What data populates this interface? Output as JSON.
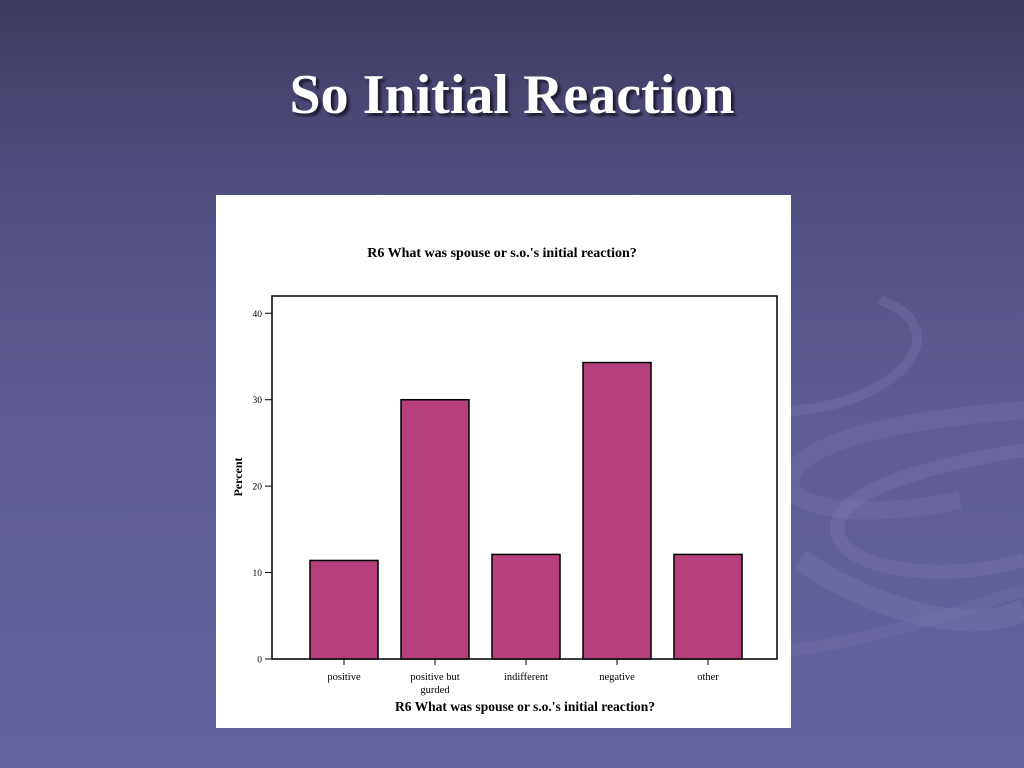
{
  "slide": {
    "title": "So Initial Reaction"
  },
  "colors": {
    "background_top": "#3d3b5f",
    "background_bottom": "#6563a0",
    "bar_fill": "#b5407b",
    "title_text": "#ffffff"
  },
  "chart_data": {
    "type": "bar",
    "title": "R6 What was spouse or s.o.'s initial reaction?",
    "xlabel": "R6 What was spouse or s.o.'s initial reaction?",
    "ylabel": "Percent",
    "categories": [
      "positive",
      "positive but gurded",
      "indifferent",
      "negative",
      "other"
    ],
    "category_lines": [
      [
        "positive"
      ],
      [
        "positive but",
        "gurded"
      ],
      [
        "indifferent"
      ],
      [
        "negative"
      ],
      [
        "other"
      ]
    ],
    "values": [
      11.4,
      30,
      12.1,
      34.3,
      12.1
    ],
    "ylim": [
      0,
      42
    ],
    "yticks": [
      0,
      10,
      20,
      30,
      40
    ],
    "grid": false,
    "legend": "none"
  }
}
